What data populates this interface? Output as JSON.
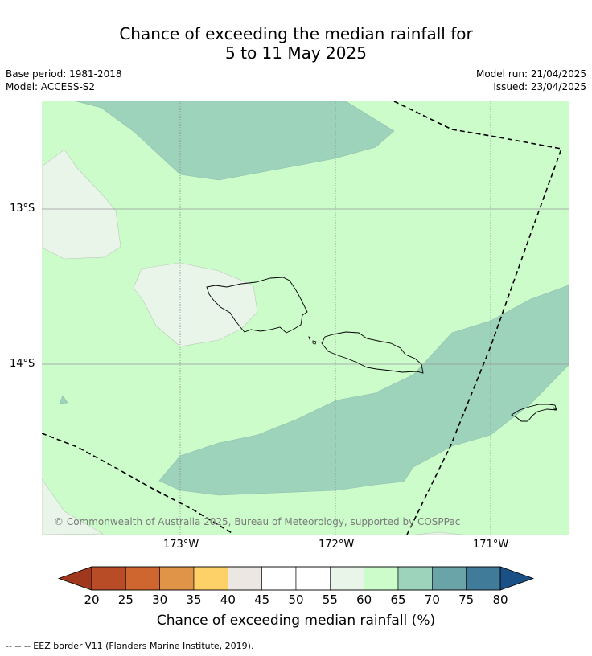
{
  "title_line1": "Chance of exceeding the median rainfall for",
  "title_line2": "5 to 11 May 2025",
  "base_period": "Base period: 1981-2018",
  "model": "Model: ACCESS-S2",
  "model_run": "Model run: 21/04/2025",
  "issued": "Issued: 23/04/2025",
  "lat_labels": [
    "13°S",
    "14°S"
  ],
  "lon_labels": [
    "173°W",
    "172°W",
    "171°W"
  ],
  "copyright": "© Commonwealth of Australia 2025, Bureau of Meteorology, supported by COSPPac",
  "colorbar": {
    "ticks": [
      "20",
      "25",
      "30",
      "35",
      "40",
      "45",
      "50",
      "55",
      "60",
      "65",
      "70",
      "75",
      "80"
    ],
    "colors": [
      "#a0381e",
      "#b84c26",
      "#cf6630",
      "#e09448",
      "#fdd068",
      "#ede7e3",
      "#ffffff",
      "#ffffff",
      "#e9f5e9",
      "#ccfcca",
      "#9dd2bb",
      "#6aa3a8",
      "#417b9a",
      "#1a5086"
    ],
    "label": "Chance of exceeding median rainfall (%)"
  },
  "footer": "--  --  -- EEZ border V11 (Flanders Marine Institute, 2019)."
}
